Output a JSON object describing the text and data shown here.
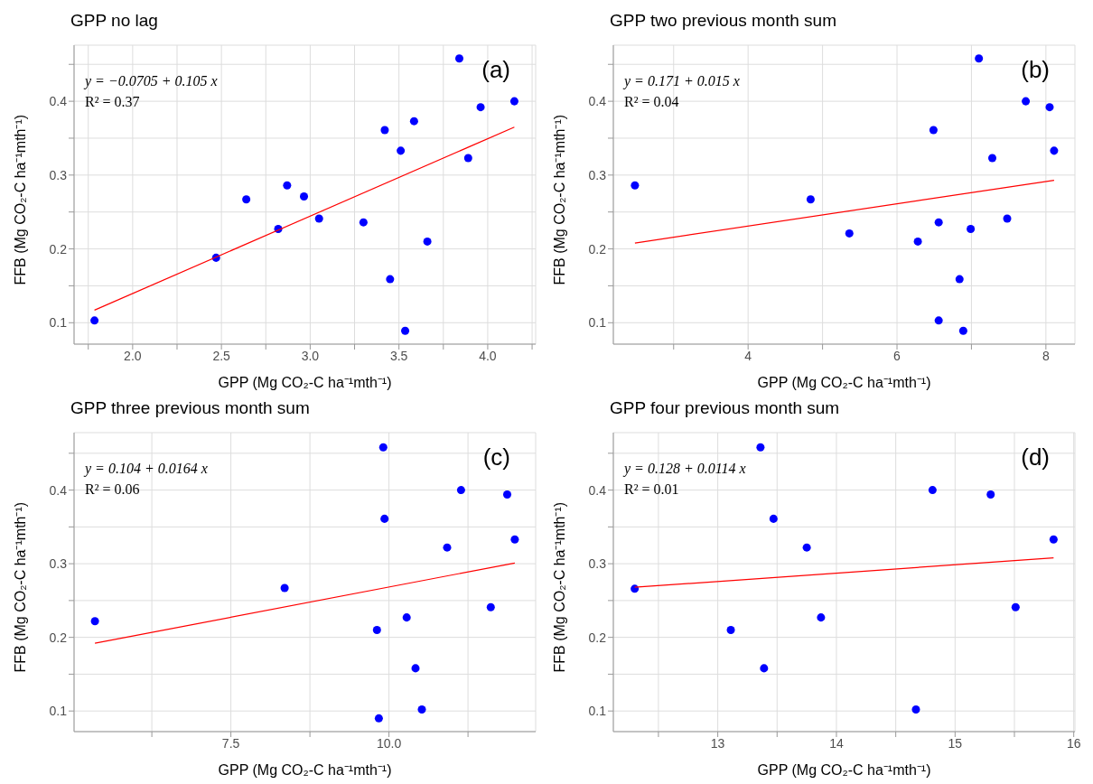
{
  "chart_data": [
    {
      "type": "scatter",
      "title": "GPP no lag",
      "xlabel": "GPP (Mg CO₂-C ha⁻¹mth⁻¹)",
      "ylabel": "FFB (Mg CO₂-C ha⁻¹mth⁻¹)",
      "annotations": [
        "y = −0.0705 + 0.105 x",
        "R² = 0.37",
        "(a)"
      ],
      "marker": "circle",
      "grid": true,
      "xlim": [
        1.67,
        4.27
      ],
      "xticks": [
        {
          "value": 1.75,
          "label": null
        },
        {
          "value": 2,
          "label": "2.0"
        },
        {
          "value": 2.25,
          "label": null
        },
        {
          "value": 2.5,
          "label": "2.5"
        },
        {
          "value": 2.75,
          "label": null
        },
        {
          "value": 3,
          "label": "3.0"
        },
        {
          "value": 3.25,
          "label": null
        },
        {
          "value": 3.5,
          "label": "3.5"
        },
        {
          "value": 3.75,
          "label": null
        },
        {
          "value": 4,
          "label": "4.0"
        },
        {
          "value": 4.25,
          "label": null
        }
      ],
      "ylim": [
        0.071,
        0.476
      ],
      "yticks": [
        0.1,
        {
          "value": 0.15,
          "label": null
        },
        0.2,
        {
          "value": 0.25,
          "label": null
        },
        0.3,
        {
          "value": 0.35,
          "label": null
        },
        0.4,
        {
          "value": 0.45,
          "label": null
        }
      ],
      "x": [
        1.785,
        2.47,
        2.64,
        2.82,
        2.87,
        2.965,
        3.05,
        3.3,
        3.42,
        3.45,
        3.51,
        3.535,
        3.585,
        3.66,
        3.84,
        3.89,
        3.96,
        4.15
      ],
      "series": [
        {
          "color": "#0000ff",
          "values": [
            0.103,
            0.188,
            0.267,
            0.227,
            0.286,
            0.271,
            0.241,
            0.236,
            0.361,
            0.159,
            0.333,
            0.089,
            0.373,
            0.21,
            0.458,
            0.323,
            0.392,
            0.4
          ]
        },
        {
          "type": "line",
          "color": "#ff0000",
          "marker": "none",
          "x": [
            1.785,
            4.15
          ],
          "values": [
            0.117,
            0.365
          ]
        }
      ]
    },
    {
      "type": "scatter",
      "title": "GPP two previous month sum",
      "xlabel": "GPP (Mg CO₂-C ha⁻¹mth⁻¹)",
      "ylabel": "FFB (Mg CO₂-C ha⁻¹mth⁻¹)",
      "annotations": [
        "y = 0.171 + 0.015 x",
        "R² = 0.04",
        "(b)"
      ],
      "marker": "circle",
      "grid": true,
      "xlim": [
        2.19,
        8.39
      ],
      "xticks": [
        {
          "value": 3,
          "label": null
        },
        4,
        {
          "value": 5,
          "label": null
        },
        6,
        {
          "value": 7,
          "label": null
        },
        8
      ],
      "ylim": [
        0.071,
        0.476
      ],
      "yticks": [
        0.1,
        {
          "value": 0.15,
          "label": null
        },
        0.2,
        {
          "value": 0.25,
          "label": null
        },
        0.3,
        {
          "value": 0.35,
          "label": null
        },
        0.4,
        {
          "value": 0.45,
          "label": null
        }
      ],
      "x": [
        2.48,
        4.84,
        5.36,
        6.28,
        6.49,
        6.56,
        6.56,
        6.84,
        6.89,
        6.99,
        7.1,
        7.28,
        7.48,
        7.73,
        8.05,
        8.11
      ],
      "series": [
        {
          "color": "#0000ff",
          "values": [
            0.286,
            0.267,
            0.221,
            0.21,
            0.361,
            0.236,
            0.103,
            0.159,
            0.089,
            0.227,
            0.458,
            0.323,
            0.241,
            0.4,
            0.392,
            0.333
          ]
        },
        {
          "type": "line",
          "color": "#ff0000",
          "marker": "none",
          "x": [
            2.48,
            8.11
          ],
          "values": [
            0.208,
            0.293
          ]
        }
      ]
    },
    {
      "type": "scatter",
      "title": "GPP three previous month sum",
      "xlabel": "GPP (Mg CO₂-C ha⁻¹mth⁻¹)",
      "ylabel": "FFB (Mg CO₂-C ha⁻¹mth⁻¹)",
      "annotations": [
        "y = 0.104 + 0.0164 x",
        "R² = 0.06",
        "(c)"
      ],
      "marker": "circle",
      "grid": true,
      "xlim": [
        5.02,
        12.32
      ],
      "xticks": [
        {
          "value": 6.25,
          "label": null
        },
        7.5,
        {
          "value": 8.75,
          "label": null
        },
        {
          "value": 10,
          "label": "10.0"
        },
        {
          "value": 11.25,
          "label": null
        }
      ],
      "ylim": [
        0.072,
        0.478
      ],
      "yticks": [
        0.1,
        {
          "value": 0.15,
          "label": null
        },
        0.2,
        {
          "value": 0.25,
          "label": null
        },
        0.3,
        {
          "value": 0.35,
          "label": null
        },
        0.4,
        {
          "value": 0.45,
          "label": null
        }
      ],
      "x": [
        5.35,
        8.35,
        9.81,
        9.84,
        9.91,
        9.93,
        10.28,
        10.42,
        10.52,
        10.92,
        11.14,
        11.61,
        11.87,
        11.99
      ],
      "series": [
        {
          "color": "#0000ff",
          "values": [
            0.222,
            0.267,
            0.21,
            0.09,
            0.458,
            0.361,
            0.227,
            0.158,
            0.102,
            0.322,
            0.4,
            0.241,
            0.394,
            0.333
          ]
        },
        {
          "type": "line",
          "color": "#ff0000",
          "marker": "none",
          "x": [
            5.35,
            11.99
          ],
          "values": [
            0.192,
            0.301
          ]
        }
      ]
    },
    {
      "type": "scatter",
      "title": "GPP four previous month sum",
      "xlabel": "GPP (Mg CO₂-C ha⁻¹mth⁻¹)",
      "ylabel": "FFB (Mg CO₂-C ha⁻¹mth⁻¹)",
      "annotations": [
        "y = 0.128 + 0.0114 x",
        "R² = 0.01",
        "(d)"
      ],
      "marker": "circle",
      "grid": true,
      "xlim": [
        12.12,
        16.01
      ],
      "xticks": [
        {
          "value": 12.5,
          "label": null
        },
        13,
        {
          "value": 13.5,
          "label": null
        },
        14,
        {
          "value": 14.5,
          "label": null
        },
        15,
        {
          "value": 15.5,
          "label": null
        },
        16
      ],
      "ylim": [
        0.072,
        0.478
      ],
      "yticks": [
        0.1,
        {
          "value": 0.15,
          "label": null
        },
        0.2,
        {
          "value": 0.25,
          "label": null
        },
        0.3,
        {
          "value": 0.35,
          "label": null
        },
        0.4,
        {
          "value": 0.45,
          "label": null
        }
      ],
      "x": [
        12.3,
        13.11,
        13.36,
        13.39,
        13.47,
        13.75,
        13.87,
        14.67,
        14.81,
        15.3,
        15.51,
        15.83
      ],
      "series": [
        {
          "color": "#0000ff",
          "values": [
            0.266,
            0.21,
            0.458,
            0.158,
            0.361,
            0.322,
            0.227,
            0.102,
            0.4,
            0.394,
            0.241,
            0.333
          ]
        },
        {
          "type": "line",
          "color": "#ff0000",
          "marker": "none",
          "x": [
            12.3,
            15.83
          ],
          "values": [
            0.268,
            0.308
          ]
        }
      ]
    }
  ]
}
